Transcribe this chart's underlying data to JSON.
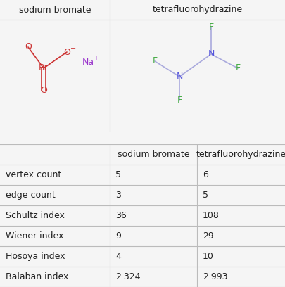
{
  "col_headers": [
    "",
    "sodium bromate",
    "tetrafluorohydrazine"
  ],
  "rows": [
    [
      "vertex count",
      "5",
      "6"
    ],
    [
      "edge count",
      "3",
      "5"
    ],
    [
      "Schultz index",
      "36",
      "108"
    ],
    [
      "Wiener index",
      "9",
      "29"
    ],
    [
      "Hosoya index",
      "4",
      "10"
    ],
    [
      "Balaban index",
      "2.324",
      "2.993"
    ]
  ],
  "background_color": "#f5f5f5",
  "panel_bg": "#ffffff",
  "border_color": "#bbbbbb",
  "header_text_color": "#222222",
  "row_label_color": "#222222",
  "data_color": "#222222",
  "font_size_header": 9,
  "font_size_data": 9,
  "font_size_row_label": 9,
  "sb_Br_color": "#cc3333",
  "sb_O_color": "#cc3333",
  "sb_Na_color": "#9933cc",
  "tfh_N_color": "#5555dd",
  "tfh_F_color": "#44aa44",
  "tfh_bond_color": "#aaaadd",
  "sb_bond_color": "#cc3333",
  "col_split": 0.385
}
